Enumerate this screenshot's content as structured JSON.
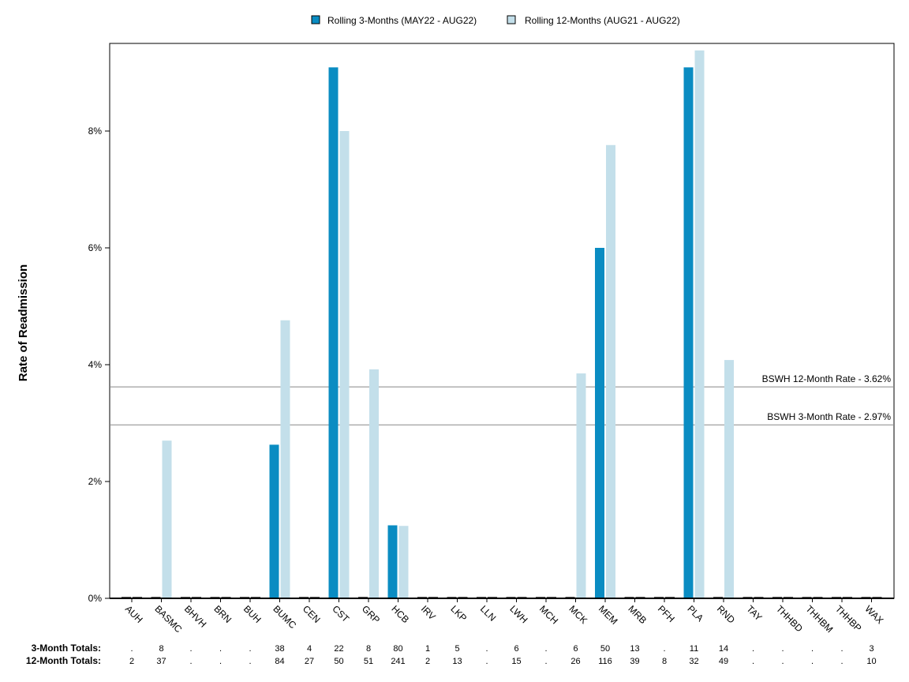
{
  "chart_data": {
    "type": "bar",
    "ylabel": "Rate of Readmission",
    "ylim": [
      0,
      9.5
    ],
    "yticks": [
      0,
      2,
      4,
      6,
      8
    ],
    "ytick_labels": [
      "0%",
      "2%",
      "4%",
      "6%",
      "8%"
    ],
    "legend_position": "top-center",
    "categories": [
      "AUH",
      "BASMC",
      "BHVH",
      "BRN",
      "BUH",
      "BUMC",
      "CEN",
      "CST",
      "GRP",
      "HCB",
      "IRV",
      "LKP",
      "LLN",
      "LWH",
      "MCH",
      "MCK",
      "MEM",
      "MRB",
      "PFH",
      "PLA",
      "RND",
      "TAY",
      "THHBD",
      "THHBM",
      "THHBP",
      "WAX"
    ],
    "series": [
      {
        "name": "Rolling 3-Months (MAY22 - AUG22)",
        "color": "#0a8cc2",
        "values": [
          0,
          0,
          0,
          0,
          0,
          2.63,
          0,
          9.09,
          0,
          1.25,
          0,
          0,
          0,
          0,
          0,
          0,
          6.0,
          0,
          0,
          9.09,
          0,
          0,
          0,
          0,
          0,
          0
        ]
      },
      {
        "name": "Rolling 12-Months (AUG21 - AUG22)",
        "color": "#c3dfea",
        "values": [
          0,
          2.7,
          0,
          0,
          0,
          4.76,
          0,
          8.0,
          3.92,
          1.24,
          0,
          0,
          0,
          0,
          0,
          3.85,
          7.76,
          0,
          0,
          9.38,
          4.08,
          0,
          0,
          0,
          0,
          0
        ]
      }
    ],
    "reference_lines": [
      {
        "label": "BSWH 12-Month Rate - 3.62%",
        "value": 3.62,
        "color": "#888888"
      },
      {
        "label": "BSWH  3-Month Rate - 2.97%",
        "value": 2.97,
        "color": "#888888"
      }
    ],
    "totals": [
      {
        "label": "3-Month Totals:",
        "values": [
          ".",
          "8",
          ".",
          ".",
          ".",
          "38",
          "4",
          "22",
          "8",
          "80",
          "1",
          "5",
          ".",
          "6",
          ".",
          "6",
          "50",
          "13",
          ".",
          "11",
          "14",
          ".",
          ".",
          ".",
          ".",
          "3"
        ]
      },
      {
        "label": "12-Month Totals:",
        "values": [
          "2",
          "37",
          ".",
          ".",
          ".",
          "84",
          "27",
          "50",
          "51",
          "241",
          "2",
          "13",
          ".",
          "15",
          ".",
          "26",
          "116",
          "39",
          "8",
          "32",
          "49",
          ".",
          ".",
          ".",
          ".",
          "10"
        ]
      }
    ]
  }
}
